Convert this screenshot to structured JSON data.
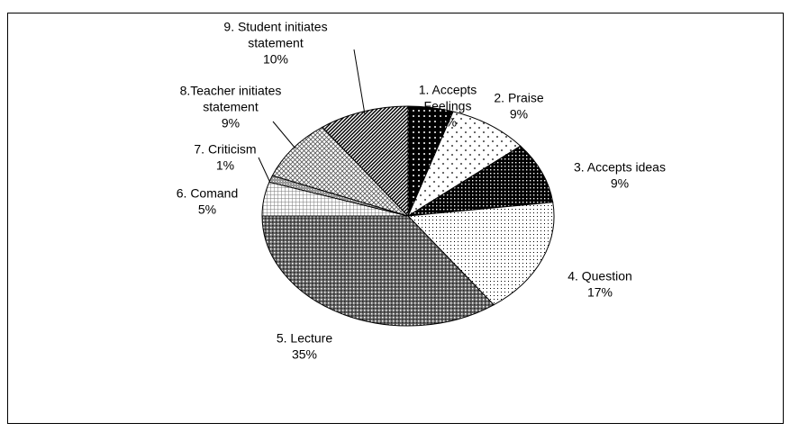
{
  "chart_data": {
    "type": "pie",
    "categories": [
      [
        "1. Accepts",
        "Feelings"
      ],
      [
        "2. Praise"
      ],
      [
        "3. Accepts ideas"
      ],
      [
        "4. Question"
      ],
      [
        "5. Lecture"
      ],
      [
        "6. Comand"
      ],
      [
        "7. Criticism"
      ],
      [
        "8.Teacher initiates",
        "statement"
      ],
      [
        "9. Student initiates",
        "statement"
      ]
    ],
    "values": [
      5,
      9,
      9,
      17,
      35,
      5,
      1,
      9,
      10
    ],
    "value_labels": [
      "5%",
      "9%",
      "9%",
      "17%",
      "35%",
      "5%",
      "1%",
      "9%",
      "10%"
    ]
  }
}
